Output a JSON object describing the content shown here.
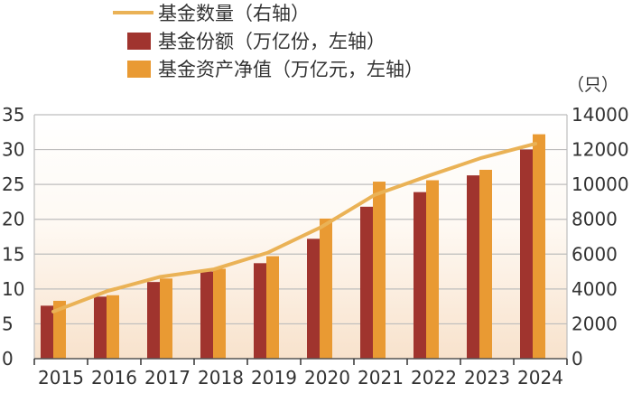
{
  "chart_data": {
    "type": "bar",
    "categories": [
      "2015",
      "2016",
      "2017",
      "2018",
      "2019",
      "2020",
      "2021",
      "2022",
      "2023",
      "2024"
    ],
    "series": [
      {
        "name": "基金份额（万亿份，左轴）",
        "kind": "bar",
        "axis": "left",
        "color": "#a0342e",
        "values": [
          7.6,
          8.9,
          11.0,
          12.5,
          13.7,
          17.2,
          21.8,
          23.9,
          26.3,
          30.0
        ]
      },
      {
        "name": "基金资产净值（万亿元，左轴）",
        "kind": "bar",
        "axis": "left",
        "color": "#e99a33",
        "values": [
          8.3,
          9.1,
          11.5,
          12.9,
          14.7,
          20.1,
          25.4,
          25.6,
          27.1,
          32.2
        ]
      },
      {
        "name": "基金数量（右轴）",
        "kind": "line",
        "axis": "right",
        "color": "#eab256",
        "values": [
          2700,
          3870,
          4700,
          5130,
          6080,
          7550,
          9400,
          10490,
          11530,
          12340
        ]
      }
    ],
    "left_axis": {
      "ylim": [
        0,
        35
      ],
      "ticks": [
        "0",
        "5",
        "10",
        "15",
        "20",
        "25",
        "30",
        "35"
      ]
    },
    "right_axis": {
      "ylim": [
        0,
        14000
      ],
      "ticks": [
        "0",
        "2000",
        "4000",
        "6000",
        "8000",
        "10000",
        "12000",
        "14000"
      ],
      "unit": "（只）"
    },
    "grid": true,
    "legend": "top"
  }
}
